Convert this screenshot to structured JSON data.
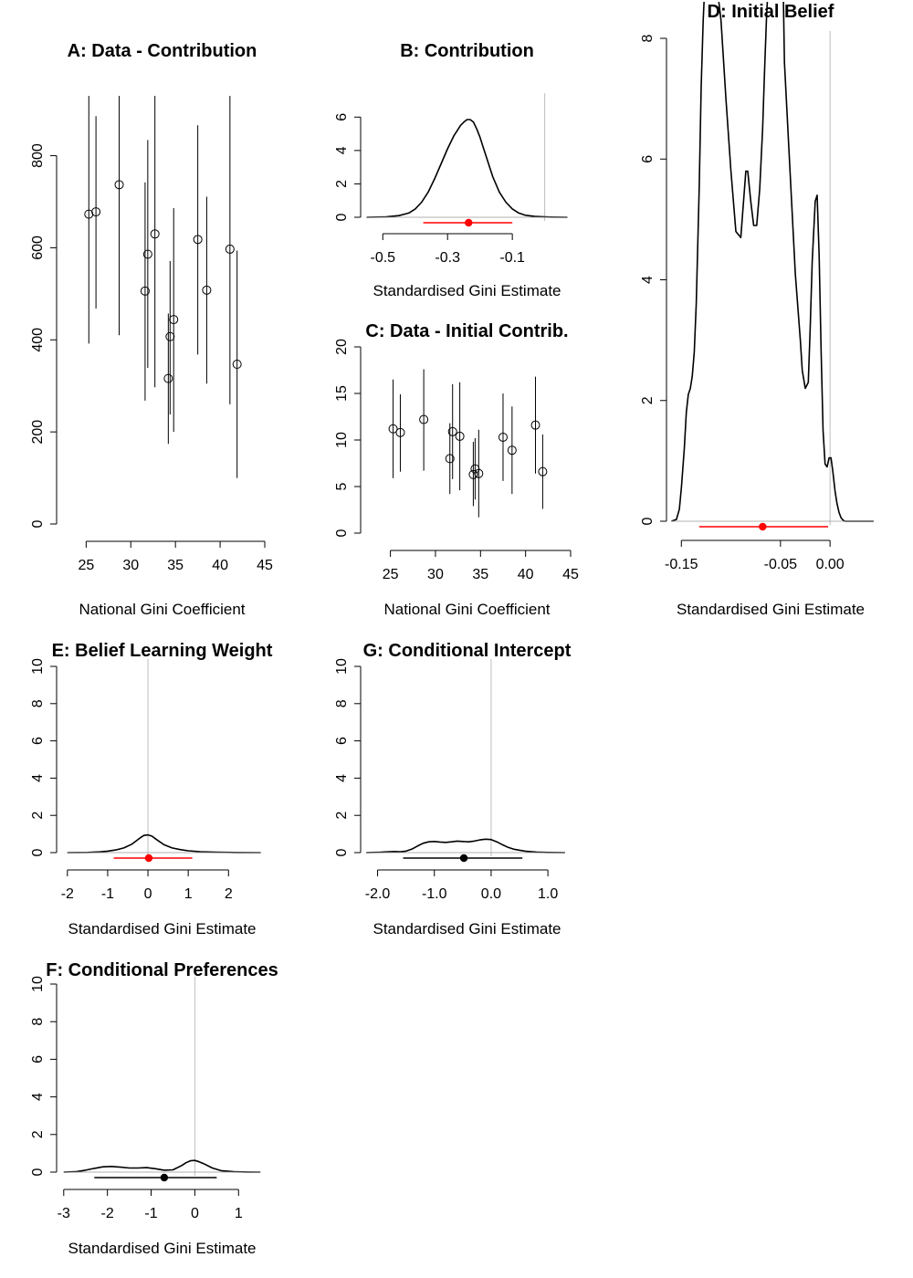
{
  "chart_data": [
    {
      "id": "A",
      "type": "scatter",
      "title": "A: Data - Contribution",
      "xlabel": "National Gini Coefficient",
      "ylabel": "",
      "xlim": [
        22,
        45
      ],
      "ylim": [
        0,
        930
      ],
      "xticks": [
        25,
        30,
        35,
        40,
        45
      ],
      "yticks": [
        0,
        200,
        400,
        600,
        800
      ],
      "points": [
        {
          "x": 25.3,
          "y": 673,
          "lo": 392,
          "hi": 930
        },
        {
          "x": 26.1,
          "y": 678,
          "lo": 468,
          "hi": 886
        },
        {
          "x": 28.7,
          "y": 737,
          "lo": 410,
          "hi": 930
        },
        {
          "x": 31.6,
          "y": 506,
          "lo": 268,
          "hi": 742
        },
        {
          "x": 31.9,
          "y": 586,
          "lo": 339,
          "hi": 834
        },
        {
          "x": 32.7,
          "y": 630,
          "lo": 297,
          "hi": 930
        },
        {
          "x": 34.2,
          "y": 316,
          "lo": 174,
          "hi": 457
        },
        {
          "x": 34.4,
          "y": 407,
          "lo": 238,
          "hi": 571
        },
        {
          "x": 34.8,
          "y": 444,
          "lo": 200,
          "hi": 686
        },
        {
          "x": 37.5,
          "y": 618,
          "lo": 368,
          "hi": 866
        },
        {
          "x": 38.5,
          "y": 508,
          "lo": 305,
          "hi": 711
        },
        {
          "x": 41.1,
          "y": 597,
          "lo": 260,
          "hi": 930
        },
        {
          "x": 41.9,
          "y": 347,
          "lo": 100,
          "hi": 594
        }
      ]
    },
    {
      "id": "B",
      "type": "line",
      "title": "B: Contribution",
      "xlabel": "Standardised Gini Estimate",
      "ylabel": "",
      "xlim": [
        -0.56,
        0.08
      ],
      "ylim": [
        0,
        7
      ],
      "xticks": [
        -0.5,
        -0.3,
        -0.1
      ],
      "yticks": [
        0,
        2,
        4,
        6
      ],
      "vline": 0,
      "density_x": [
        -0.55,
        -0.49,
        -0.45,
        -0.42,
        -0.4,
        -0.38,
        -0.36,
        -0.34,
        -0.32,
        -0.3,
        -0.28,
        -0.27,
        -0.26,
        -0.25,
        -0.24,
        -0.23,
        -0.22,
        -0.21,
        -0.2,
        -0.19,
        -0.18,
        -0.17,
        -0.16,
        -0.14,
        -0.12,
        -0.1,
        -0.08,
        -0.06,
        -0.03,
        0.0,
        0.02,
        0.07
      ],
      "density_y": [
        0,
        0.02,
        0.1,
        0.25,
        0.5,
        0.9,
        1.5,
        2.3,
        3.2,
        4.1,
        4.9,
        5.2,
        5.5,
        5.7,
        5.85,
        5.85,
        5.7,
        5.3,
        4.8,
        4.2,
        3.6,
        3.0,
        2.4,
        1.5,
        0.9,
        0.5,
        0.25,
        0.12,
        0.05,
        0.02,
        0.01,
        0
      ],
      "interval": {
        "lo": -0.375,
        "hi": -0.1,
        "point": -0.235,
        "color": "#ff0000"
      }
    },
    {
      "id": "C",
      "type": "scatter",
      "title": "C: Data - Initial Contrib.",
      "xlabel": "National Gini Coefficient",
      "ylabel": "",
      "xlim": [
        22,
        45
      ],
      "ylim": [
        0,
        20
      ],
      "xticks": [
        25,
        30,
        35,
        40,
        45
      ],
      "yticks": [
        0,
        5,
        10,
        15,
        20
      ],
      "points": [
        {
          "x": 25.3,
          "y": 11.2,
          "lo": 5.9,
          "hi": 16.5
        },
        {
          "x": 26.1,
          "y": 10.8,
          "lo": 6.6,
          "hi": 14.9
        },
        {
          "x": 28.7,
          "y": 12.2,
          "lo": 6.7,
          "hi": 17.6
        },
        {
          "x": 31.6,
          "y": 8.0,
          "lo": 4.2,
          "hi": 11.8
        },
        {
          "x": 31.9,
          "y": 10.9,
          "lo": 5.8,
          "hi": 16.0
        },
        {
          "x": 32.7,
          "y": 10.4,
          "lo": 4.6,
          "hi": 16.2
        },
        {
          "x": 34.2,
          "y": 6.3,
          "lo": 2.9,
          "hi": 9.8
        },
        {
          "x": 34.4,
          "y": 6.9,
          "lo": 3.6,
          "hi": 10.2
        },
        {
          "x": 34.8,
          "y": 6.4,
          "lo": 1.7,
          "hi": 11.1
        },
        {
          "x": 37.5,
          "y": 10.3,
          "lo": 5.6,
          "hi": 15.0
        },
        {
          "x": 38.5,
          "y": 8.9,
          "lo": 4.2,
          "hi": 13.6
        },
        {
          "x": 41.1,
          "y": 11.6,
          "lo": 6.4,
          "hi": 16.8
        },
        {
          "x": 41.9,
          "y": 6.6,
          "lo": 2.6,
          "hi": 10.6
        }
      ]
    },
    {
      "id": "D",
      "type": "line",
      "title": "D: Initial Belief",
      "xlabel": "Standardised Gini Estimate",
      "ylabel": "",
      "xlim": [
        -0.165,
        0.045
      ],
      "ylim": [
        0,
        8
      ],
      "xticks": [
        -0.15,
        -0.05,
        0.0
      ],
      "xtick_labels": [
        "-0.15",
        "-0.05",
        "0.00"
      ],
      "yticks": [
        0,
        2,
        4,
        6,
        8
      ],
      "vline": 0,
      "density_x": [
        -0.16,
        -0.155,
        -0.152,
        -0.15,
        -0.147,
        -0.145,
        -0.143,
        -0.141,
        -0.139,
        -0.137,
        -0.135,
        -0.132,
        -0.13,
        -0.128,
        -0.126,
        -0.115,
        -0.11,
        -0.105,
        -0.1,
        -0.095,
        -0.09,
        -0.085,
        -0.083,
        -0.08,
        -0.077,
        -0.074,
        -0.071,
        -0.068,
        -0.066,
        -0.064,
        -0.062,
        -0.06,
        -0.058,
        -0.056,
        -0.054,
        -0.052,
        -0.05,
        -0.048,
        -0.047,
        -0.046,
        -0.035,
        -0.03,
        -0.028,
        -0.025,
        -0.022,
        -0.02,
        -0.018,
        -0.015,
        -0.013,
        -0.011,
        -0.009,
        -0.007,
        -0.005,
        -0.003,
        -0.001,
        0.001,
        0.003,
        0.005,
        0.007,
        0.009,
        0.011,
        0.013,
        0.015,
        0.017,
        0.019,
        0.021,
        0.023,
        0.025,
        0.028,
        0.032,
        0.037,
        0.044
      ],
      "density_y": [
        0,
        0.03,
        0.2,
        0.55,
        1.2,
        1.8,
        2.1,
        2.2,
        2.4,
        2.8,
        3.6,
        5.5,
        7.2,
        8.3,
        9.0,
        9.0,
        8.3,
        7.0,
        5.8,
        4.8,
        4.7,
        5.8,
        5.8,
        5.3,
        4.9,
        4.9,
        5.5,
        6.5,
        7.5,
        8.4,
        9.0,
        9.0,
        9.0,
        9.0,
        9.0,
        9.0,
        9.0,
        9.0,
        8.6,
        7.6,
        4.1,
        3.0,
        2.5,
        2.2,
        2.3,
        3.2,
        4.3,
        5.3,
        5.4,
        4.4,
        2.8,
        1.5,
        0.95,
        0.9,
        1.05,
        1.05,
        0.8,
        0.5,
        0.3,
        0.15,
        0.06,
        0.02,
        0.0,
        0.0,
        0.0,
        0.0,
        0.0,
        0.0,
        0.0,
        0.0,
        0.0,
        0.0
      ],
      "interval": {
        "lo": -0.132,
        "hi": -0.002,
        "point": -0.068,
        "color": "#ff0000"
      }
    },
    {
      "id": "E",
      "type": "line",
      "title": "E: Belief Learning Weight",
      "xlabel": "Standardised Gini Estimate",
      "ylabel": "",
      "xlim": [
        -2.2,
        2.9
      ],
      "ylim": [
        0,
        10
      ],
      "xticks": [
        -2,
        -1,
        0,
        1,
        2
      ],
      "yticks": [
        0,
        2,
        4,
        6,
        8,
        10
      ],
      "vline": 0,
      "density_x": [
        -2.0,
        -1.5,
        -1.2,
        -1.0,
        -0.8,
        -0.6,
        -0.4,
        -0.2,
        -0.1,
        0.0,
        0.1,
        0.2,
        0.4,
        0.6,
        0.8,
        1.0,
        1.3,
        1.7,
        2.2,
        2.8
      ],
      "density_y": [
        0,
        0.01,
        0.04,
        0.08,
        0.14,
        0.25,
        0.45,
        0.78,
        0.92,
        0.95,
        0.88,
        0.72,
        0.42,
        0.25,
        0.16,
        0.1,
        0.05,
        0.02,
        0.005,
        0
      ],
      "interval": {
        "lo": -0.85,
        "hi": 1.1,
        "point": 0.02,
        "color": "#ff0000"
      }
    },
    {
      "id": "G",
      "type": "line",
      "title": "G: Conditional Intercept",
      "xlabel": "Standardised Gini Estimate",
      "ylabel": "",
      "xlim": [
        -2.25,
        1.4
      ],
      "ylim": [
        0,
        10
      ],
      "xticks": [
        -2.0,
        -1.0,
        0.0,
        1.0
      ],
      "xtick_labels": [
        "-2.0",
        "-1.0",
        "0.0",
        "1.0"
      ],
      "yticks": [
        0,
        2,
        4,
        6,
        8,
        10
      ],
      "vline": 0,
      "density_x": [
        -2.2,
        -1.95,
        -1.8,
        -1.7,
        -1.6,
        -1.5,
        -1.4,
        -1.3,
        -1.2,
        -1.1,
        -1.0,
        -0.9,
        -0.8,
        -0.7,
        -0.6,
        -0.5,
        -0.4,
        -0.3,
        -0.2,
        -0.1,
        0.0,
        0.1,
        0.2,
        0.3,
        0.4,
        0.6,
        0.8,
        1.0,
        1.3
      ],
      "density_y": [
        0,
        0.02,
        0.05,
        0.06,
        0.05,
        0.08,
        0.18,
        0.35,
        0.5,
        0.58,
        0.6,
        0.57,
        0.55,
        0.58,
        0.62,
        0.6,
        0.58,
        0.62,
        0.68,
        0.72,
        0.7,
        0.58,
        0.42,
        0.28,
        0.18,
        0.08,
        0.03,
        0.01,
        0
      ],
      "interval": {
        "lo": -1.55,
        "hi": 0.55,
        "point": -0.48,
        "color": "#000000"
      }
    },
    {
      "id": "F",
      "type": "line",
      "title": "F: Conditional Preferences",
      "xlabel": "Standardised Gini Estimate",
      "ylabel": "",
      "xlim": [
        -3.1,
        1.6
      ],
      "ylim": [
        0,
        10
      ],
      "xticks": [
        -3,
        -2,
        -1,
        0,
        1
      ],
      "yticks": [
        0,
        2,
        4,
        6,
        8,
        10
      ],
      "vline": 0,
      "density_x": [
        -3.0,
        -2.7,
        -2.5,
        -2.3,
        -2.1,
        -1.9,
        -1.7,
        -1.5,
        -1.3,
        -1.1,
        -0.9,
        -0.7,
        -0.5,
        -0.3,
        -0.2,
        -0.1,
        0.0,
        0.1,
        0.2,
        0.4,
        0.6,
        0.9,
        1.2,
        1.5
      ],
      "density_y": [
        0,
        0.03,
        0.1,
        0.2,
        0.28,
        0.3,
        0.26,
        0.22,
        0.22,
        0.24,
        0.18,
        0.1,
        0.12,
        0.35,
        0.5,
        0.6,
        0.62,
        0.55,
        0.45,
        0.22,
        0.08,
        0.02,
        0.005,
        0
      ],
      "interval": {
        "lo": -2.3,
        "hi": 0.5,
        "point": -0.7,
        "color": "#000000"
      }
    }
  ]
}
